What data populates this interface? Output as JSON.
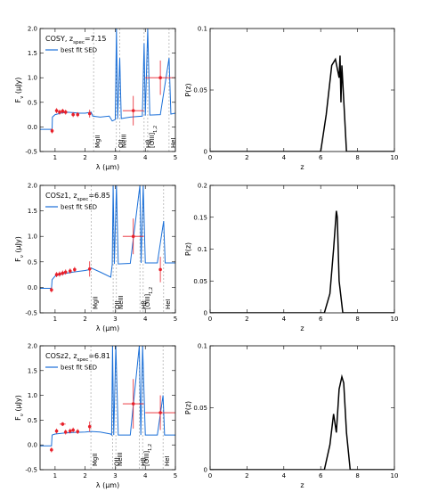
{
  "chart_data": [
    {
      "type": "line",
      "xlabel": [
        {
          "text": "λ (μm)"
        }
      ],
      "ylabel": [
        {
          "text": "F"
        },
        {
          "text": "ν",
          "sub": true
        },
        {
          "text": " (μJy)"
        }
      ],
      "annotation": [
        {
          "text": "COSY, z"
        },
        {
          "text": "spec",
          "sub": true
        },
        {
          "text": "=7.15"
        }
      ],
      "xlim": [
        0.5,
        5
      ],
      "xticks": [
        1,
        2,
        3,
        4,
        5
      ],
      "ylim": [
        -0.5,
        2.0
      ],
      "yticks": [
        {
          "value": -0.5,
          "label": "-0.5"
        },
        {
          "value": 0,
          "label": "0.0"
        },
        {
          "value": 0.5,
          "label": "0.5"
        },
        {
          "value": 1,
          "label": "1.0"
        },
        {
          "value": 1.5,
          "label": "1.5"
        },
        {
          "value": 2,
          "label": "2.0"
        }
      ],
      "series": [
        {
          "name": "best fit SED",
          "color": "#1a6fd8",
          "x": [
            0.5,
            0.9,
            0.91,
            1.0,
            1.2,
            1.4,
            1.6,
            1.8,
            2.0,
            2.2,
            2.25,
            2.5,
            2.8,
            2.9,
            3.0,
            3.04,
            3.08,
            3.15,
            3.2,
            3.5,
            3.9,
            3.96,
            4.0,
            4.08,
            4.15,
            4.5,
            4.79,
            4.85,
            5.0
          ],
          "values": [
            -0.05,
            -0.05,
            0.2,
            0.25,
            0.28,
            0.3,
            0.29,
            0.28,
            0.28,
            0.3,
            0.22,
            0.2,
            0.22,
            0.12,
            0.15,
            2.0,
            0.16,
            1.4,
            0.17,
            0.2,
            0.22,
            1.7,
            0.23,
            2.0,
            0.24,
            0.25,
            1.4,
            0.26,
            0.28
          ]
        }
      ],
      "points": {
        "color": "#e8202a",
        "x": [
          0.9,
          1.05,
          1.15,
          1.25,
          1.35,
          1.6,
          1.75,
          2.15,
          3.6,
          4.5
        ],
        "values": [
          -0.08,
          0.33,
          0.3,
          0.32,
          0.3,
          0.25,
          0.25,
          0.27,
          0.33,
          1.0
        ],
        "yerr": [
          0.05,
          0.05,
          0.05,
          0.05,
          0.05,
          0.05,
          0.05,
          0.08,
          0.3,
          0.35
        ],
        "xerr": [
          0,
          0,
          0,
          0,
          0,
          0,
          0,
          0,
          0.35,
          0.5
        ]
      },
      "line_markers": [
        {
          "label": "MgII",
          "x": 2.28
        },
        {
          "label": "OII",
          "x": 3.04
        },
        {
          "label": "NeIII",
          "x": 3.15
        },
        {
          "label": "Hβ",
          "x": 3.96
        },
        {
          "label": "[OIII]",
          "subscript": "1,2",
          "x": 4.08
        },
        {
          "label": "HeI",
          "x": 4.79
        }
      ]
    },
    {
      "type": "line",
      "xlabel": [
        {
          "text": "z"
        }
      ],
      "ylabel": [
        {
          "text": "P(z)"
        }
      ],
      "xlim": [
        0,
        10
      ],
      "xticks": [
        0,
        2,
        4,
        6,
        8,
        10
      ],
      "ylim": [
        0,
        0.1
      ],
      "yticks": [
        0,
        0.05,
        0.1
      ],
      "series": [
        {
          "color": "#000000",
          "x": [
            0,
            6.0,
            6.3,
            6.6,
            6.8,
            7.0,
            7.05,
            7.1,
            7.15,
            7.4,
            10
          ],
          "values": [
            0,
            0,
            0.03,
            0.07,
            0.075,
            0.06,
            0.078,
            0.04,
            0.07,
            0,
            0
          ]
        }
      ]
    },
    {
      "type": "line",
      "xlabel": [
        {
          "text": "λ (μm)"
        }
      ],
      "ylabel": [
        {
          "text": "F"
        },
        {
          "text": "ν",
          "sub": true
        },
        {
          "text": " (μJy)"
        }
      ],
      "annotation": [
        {
          "text": "COSz1, z"
        },
        {
          "text": "spec",
          "sub": true
        },
        {
          "text": "=6.85"
        }
      ],
      "xlim": [
        0.5,
        5
      ],
      "xticks": [
        1,
        2,
        3,
        4,
        5
      ],
      "ylim": [
        -0.5,
        2.0
      ],
      "yticks": [
        {
          "value": -0.5,
          "label": "-0.5"
        },
        {
          "value": 0,
          "label": "0.0"
        },
        {
          "value": 0.5,
          "label": "0.5"
        },
        {
          "value": 1,
          "label": "1.0"
        },
        {
          "value": 1.5,
          "label": "1.5"
        },
        {
          "value": 2,
          "label": "2.0"
        }
      ],
      "series": [
        {
          "name": "best fit SED",
          "color": "#1a6fd8",
          "x": [
            0.5,
            0.88,
            0.9,
            1.0,
            1.3,
            1.6,
            2.0,
            2.15,
            2.2,
            2.5,
            2.85,
            2.9,
            2.93,
            2.97,
            3.04,
            3.1,
            3.5,
            3.82,
            3.86,
            3.93,
            4.0,
            4.4,
            4.61,
            4.66,
            5.0
          ],
          "values": [
            -0.02,
            -0.02,
            0.15,
            0.22,
            0.27,
            0.3,
            0.33,
            0.35,
            0.38,
            0.3,
            0.2,
            0.45,
            2.0,
            0.46,
            2.0,
            0.46,
            0.47,
            2.0,
            0.48,
            2.0,
            0.48,
            0.48,
            1.3,
            0.48,
            0.48
          ]
        }
      ],
      "points": {
        "color": "#e8202a",
        "x": [
          0.88,
          1.05,
          1.15,
          1.25,
          1.35,
          1.5,
          1.65,
          2.15,
          3.6,
          4.5
        ],
        "values": [
          -0.05,
          0.25,
          0.26,
          0.28,
          0.3,
          0.32,
          0.35,
          0.36,
          1.0,
          0.35
        ],
        "yerr": [
          0.05,
          0.05,
          0.05,
          0.05,
          0.05,
          0.05,
          0.05,
          0.15,
          0.35,
          0.25
        ],
        "xerr": [
          0,
          0,
          0,
          0,
          0,
          0,
          0,
          0,
          0.35,
          0
        ]
      },
      "line_markers": [
        {
          "label": "MgII",
          "x": 2.2
        },
        {
          "label": "OII",
          "x": 2.93
        },
        {
          "label": "NeIII",
          "x": 3.04
        },
        {
          "label": "Hβ",
          "x": 3.82
        },
        {
          "label": "[OIII]",
          "subscript": "1,2",
          "x": 3.93
        },
        {
          "label": "HeI",
          "x": 4.61
        }
      ]
    },
    {
      "type": "line",
      "xlabel": [
        {
          "text": "z"
        }
      ],
      "ylabel": [
        {
          "text": "P(z)"
        }
      ],
      "xlim": [
        0,
        10
      ],
      "xticks": [
        0,
        2,
        4,
        6,
        8,
        10
      ],
      "ylim": [
        0,
        0.2
      ],
      "yticks": [
        0,
        0.05,
        0.1,
        0.15,
        0.2
      ],
      "series": [
        {
          "color": "#000000",
          "x": [
            0,
            6.2,
            6.5,
            6.7,
            6.85,
            6.9,
            7.0,
            7.2,
            10
          ],
          "values": [
            0,
            0,
            0.03,
            0.1,
            0.16,
            0.15,
            0.05,
            0,
            0
          ]
        }
      ]
    },
    {
      "type": "line",
      "xlabel": [
        {
          "text": "λ (μm)"
        }
      ],
      "ylabel": [
        {
          "text": "F"
        },
        {
          "text": "ν",
          "sub": true
        },
        {
          "text": " (μJy)"
        }
      ],
      "annotation": [
        {
          "text": "COSz2, z"
        },
        {
          "text": "spec",
          "sub": true
        },
        {
          "text": "=6.81"
        }
      ],
      "xlim": [
        0.5,
        5
      ],
      "xticks": [
        1,
        2,
        3,
        4,
        5
      ],
      "ylim": [
        -0.5,
        2.0
      ],
      "yticks": [
        {
          "value": -0.5,
          "label": "-0.5"
        },
        {
          "value": 0,
          "label": "0.0"
        },
        {
          "value": 0.5,
          "label": "0.5"
        },
        {
          "value": 1,
          "label": "1.0"
        },
        {
          "value": 1.5,
          "label": "1.5"
        },
        {
          "value": 2,
          "label": "2.0"
        }
      ],
      "series": [
        {
          "name": "best fit SED",
          "color": "#1a6fd8",
          "x": [
            0.5,
            0.88,
            0.9,
            1.0,
            1.3,
            1.6,
            2.0,
            2.2,
            2.5,
            2.85,
            2.88,
            2.91,
            2.95,
            3.02,
            3.1,
            3.5,
            3.8,
            3.85,
            3.91,
            4.0,
            4.4,
            4.59,
            4.64,
            5.0
          ],
          "values": [
            -0.02,
            -0.02,
            0.2,
            0.22,
            0.24,
            0.25,
            0.26,
            0.27,
            0.26,
            0.22,
            0.2,
            2.0,
            0.2,
            2.0,
            0.2,
            0.2,
            2.0,
            0.2,
            2.0,
            0.2,
            0.2,
            1.0,
            0.2,
            0.2
          ]
        }
      ],
      "points": {
        "color": "#e8202a",
        "x": [
          0.88,
          1.05,
          1.25,
          1.35,
          1.5,
          1.6,
          1.75,
          2.15,
          3.6,
          4.5
        ],
        "values": [
          -0.1,
          0.28,
          0.42,
          0.26,
          0.28,
          0.3,
          0.27,
          0.37,
          0.83,
          0.65
        ],
        "yerr": [
          0.05,
          0.05,
          0.04,
          0.05,
          0.05,
          0.05,
          0.05,
          0.1,
          0.5,
          0.35
        ],
        "xerr": [
          0,
          0,
          0.1,
          0,
          0,
          0,
          0,
          0,
          0.35,
          0.5
        ]
      },
      "line_markers": [
        {
          "label": "MgII",
          "x": 2.19
        },
        {
          "label": "OII",
          "x": 2.91
        },
        {
          "label": "NeIII",
          "x": 3.02
        },
        {
          "label": "Hβ",
          "x": 3.8
        },
        {
          "label": "[OIII]",
          "subscript": "1,2",
          "x": 3.91
        },
        {
          "label": "HeI",
          "x": 4.59
        }
      ]
    },
    {
      "type": "line",
      "xlabel": [
        {
          "text": "z"
        }
      ],
      "ylabel": [
        {
          "text": "P(z)"
        }
      ],
      "xlim": [
        0,
        10
      ],
      "xticks": [
        0,
        2,
        4,
        6,
        8,
        10
      ],
      "ylim": [
        0,
        0.1
      ],
      "yticks": [
        0,
        0.05,
        0.1
      ],
      "series": [
        {
          "color": "#000000",
          "x": [
            0,
            6.2,
            6.5,
            6.7,
            6.85,
            7.0,
            7.15,
            7.25,
            7.4,
            7.6,
            10
          ],
          "values": [
            0,
            0,
            0.02,
            0.045,
            0.03,
            0.065,
            0.075,
            0.07,
            0.03,
            0,
            0
          ]
        }
      ]
    }
  ]
}
